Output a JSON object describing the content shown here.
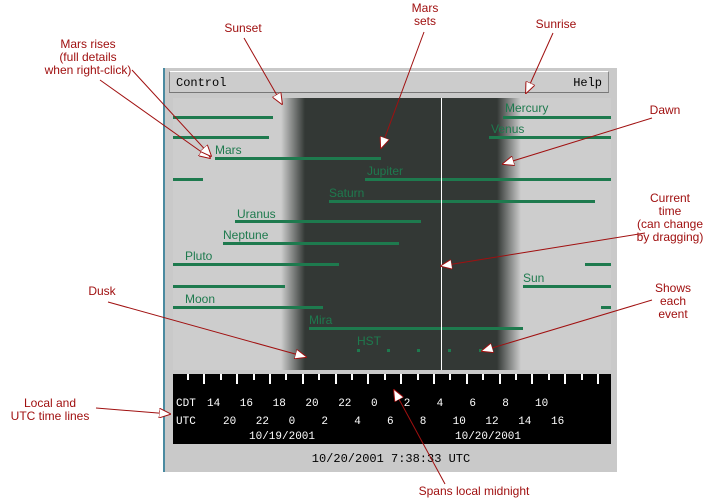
{
  "annotations": {
    "sunset": "Sunset",
    "mars_sets_1": "Mars",
    "mars_sets_2": "sets",
    "sunrise": "Sunrise",
    "mars_rises_1": "Mars rises",
    "mars_rises_2": "(full details",
    "mars_rises_3": "when right-click)",
    "dawn": "Dawn",
    "current_time_1": "Current",
    "current_time_2": "time",
    "current_time_3": "(can change",
    "current_time_4": "by dragging)",
    "dusk": "Dusk",
    "shows_event_1": "Shows",
    "shows_event_2": "each",
    "shows_event_3": "event",
    "local_utc_1": "Local and",
    "local_utc_2": "UTC time lines",
    "spans_midnight": "Spans local midnight"
  },
  "menu": {
    "control": "Control",
    "help": "Help"
  },
  "planets": {
    "mercury": "Mercury",
    "venus": "Venus",
    "mars": "Mars",
    "jupiter": "Jupiter",
    "saturn": "Saturn",
    "uranus": "Uranus",
    "neptune": "Neptune",
    "pluto": "Pluto",
    "sun": "Sun",
    "moon": "Moon",
    "mira": "Mira",
    "hst": "HST"
  },
  "timeline": {
    "cdt_label": "CDT",
    "utc_label": "UTC",
    "cdt_hours": [
      "14",
      "16",
      "18",
      "20",
      "22",
      "0",
      "2",
      "4",
      "6",
      "8",
      "10"
    ],
    "utc_hours": [
      "20",
      "22",
      "0",
      "2",
      "4",
      "6",
      "8",
      "10",
      "12",
      "14",
      "16"
    ],
    "date_left": "10/19/2001",
    "date_right": "10/20/2001"
  },
  "status": {
    "datetime": "10/20/2001  7:38:33 UTC"
  },
  "colors": {
    "annotation": "#a01010",
    "track": "#1e7a4e",
    "night": "#333835"
  }
}
